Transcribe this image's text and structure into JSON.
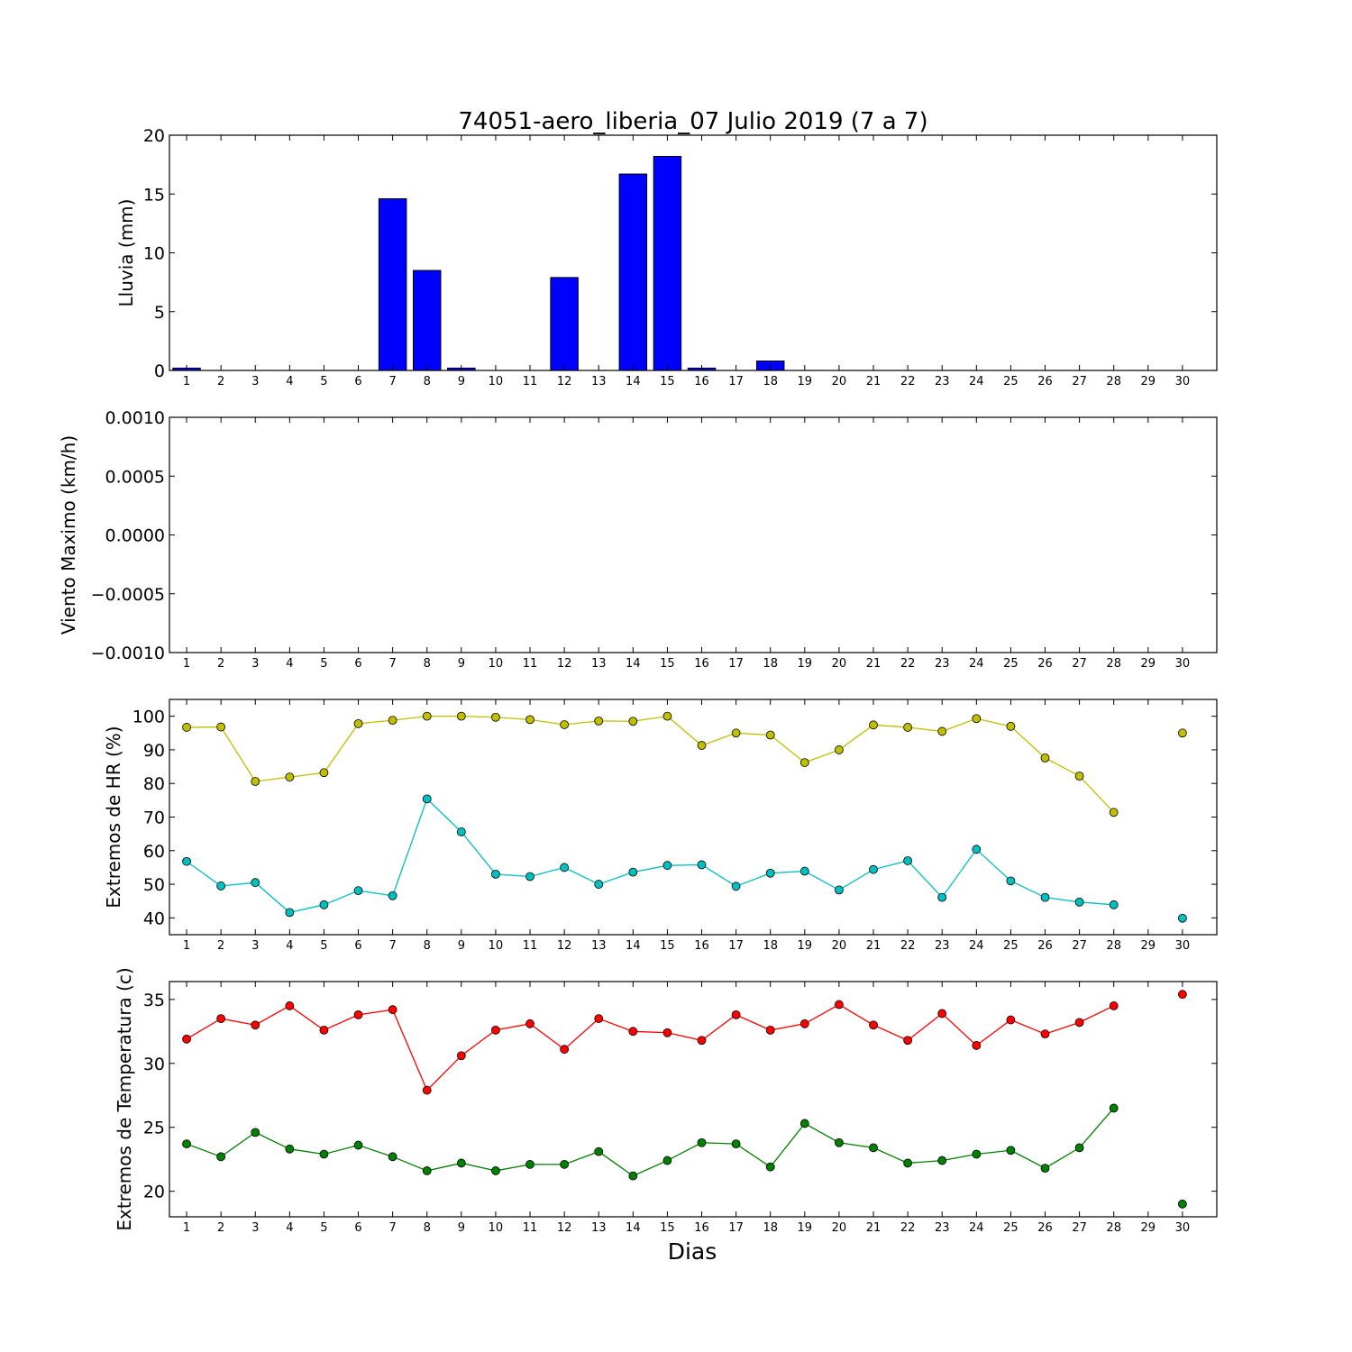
{
  "title": "74051-aero_liberia_07 Julio 2019  (7 a 7)",
  "xlabel": "Dias",
  "chart_data": [
    {
      "type": "bar",
      "ylabel": "Lluvia (mm)",
      "ylim": [
        0,
        20
      ],
      "yticks": [
        0,
        5,
        10,
        15,
        20
      ],
      "ytick_labels": [
        "0",
        "5",
        "10",
        "15",
        "20"
      ],
      "categories": [
        "1",
        "2",
        "3",
        "4",
        "5",
        "6",
        "7",
        "8",
        "9",
        "10",
        "11",
        "12",
        "13",
        "14",
        "15",
        "16",
        "17",
        "18",
        "19",
        "20",
        "21",
        "22",
        "23",
        "24",
        "25",
        "26",
        "27",
        "28",
        "29",
        "30"
      ],
      "values": [
        0.2,
        0,
        0,
        0,
        0,
        0,
        14.6,
        8.5,
        0.2,
        0,
        0,
        7.9,
        0,
        16.7,
        18.2,
        0.2,
        0,
        0.8,
        0,
        0,
        0,
        0,
        0,
        0,
        0,
        0,
        0,
        0,
        0,
        0
      ],
      "color": "#0000ff"
    },
    {
      "type": "line",
      "ylabel": "Viento Maximo (km/h)",
      "ylim": [
        -0.001,
        0.001
      ],
      "yticks": [
        -0.001,
        -0.0005,
        0,
        0.0005,
        0.001
      ],
      "ytick_labels": [
        "−0.0010",
        "−0.0005",
        "0.0000",
        "0.0005",
        "0.0010"
      ],
      "categories": [
        "1",
        "2",
        "3",
        "4",
        "5",
        "6",
        "7",
        "8",
        "9",
        "10",
        "11",
        "12",
        "13",
        "14",
        "15",
        "16",
        "17",
        "18",
        "19",
        "20",
        "21",
        "22",
        "23",
        "24",
        "25",
        "26",
        "27",
        "28",
        "29",
        "30"
      ],
      "series": []
    },
    {
      "type": "line",
      "ylabel": "Extremos de HR (%)",
      "ylim": [
        35,
        105
      ],
      "yticks": [
        40,
        50,
        60,
        70,
        80,
        90,
        100
      ],
      "ytick_labels": [
        "40",
        "50",
        "60",
        "70",
        "80",
        "90",
        "100"
      ],
      "categories": [
        "1",
        "2",
        "3",
        "4",
        "5",
        "6",
        "7",
        "8",
        "9",
        "10",
        "11",
        "12",
        "13",
        "14",
        "15",
        "16",
        "17",
        "18",
        "19",
        "20",
        "21",
        "22",
        "23",
        "24",
        "25",
        "26",
        "27",
        "28",
        "29",
        "30"
      ],
      "series": [
        {
          "color": "#bfbf00",
          "values": [
            96.7,
            96.8,
            80.6,
            81.9,
            83.2,
            97.8,
            98.8,
            100,
            100,
            99.7,
            99,
            97.5,
            98.6,
            98.5,
            100,
            91.3,
            95,
            94.4,
            86.2,
            90,
            97.4,
            96.7,
            95.5,
            99.3,
            97,
            87.6,
            82.2,
            71.4,
            null,
            95
          ]
        },
        {
          "color": "#00bfbf",
          "values": [
            56.8,
            49.5,
            50.5,
            41.6,
            43.9,
            48.1,
            46.6,
            75.4,
            65.6,
            53,
            52.3,
            55,
            50,
            53.6,
            55.6,
            55.8,
            49.4,
            53.3,
            53.9,
            48.3,
            54.4,
            57,
            46.1,
            60.4,
            51,
            46.1,
            44.7,
            43.9,
            null,
            39.9
          ]
        }
      ]
    },
    {
      "type": "line",
      "ylabel": "Extremos de Temperatura (c)",
      "ylim": [
        18,
        36.4
      ],
      "yticks": [
        20,
        25,
        30,
        35
      ],
      "ytick_labels": [
        "20",
        "25",
        "30",
        "35"
      ],
      "categories": [
        "1",
        "2",
        "3",
        "4",
        "5",
        "6",
        "7",
        "8",
        "9",
        "10",
        "11",
        "12",
        "13",
        "14",
        "15",
        "16",
        "17",
        "18",
        "19",
        "20",
        "21",
        "22",
        "23",
        "24",
        "25",
        "26",
        "27",
        "28",
        "29",
        "30"
      ],
      "series": [
        {
          "color": "#ff0000",
          "values": [
            31.9,
            33.5,
            33,
            34.5,
            32.6,
            33.8,
            34.2,
            27.9,
            30.6,
            32.6,
            33.1,
            31.1,
            33.5,
            32.5,
            32.4,
            31.8,
            33.8,
            32.6,
            33.1,
            34.6,
            33,
            31.8,
            33.9,
            31.4,
            33.4,
            32.3,
            33.2,
            34.5,
            null,
            35.4
          ]
        },
        {
          "color": "#008000",
          "values": [
            23.7,
            22.7,
            24.6,
            23.3,
            22.9,
            23.6,
            22.7,
            21.6,
            22.2,
            21.6,
            22.1,
            22.1,
            23.1,
            21.2,
            22.4,
            23.8,
            23.7,
            21.9,
            25.3,
            23.8,
            23.4,
            22.2,
            22.4,
            22.9,
            23.2,
            21.8,
            23.4,
            26.5,
            null,
            19
          ]
        }
      ]
    }
  ]
}
